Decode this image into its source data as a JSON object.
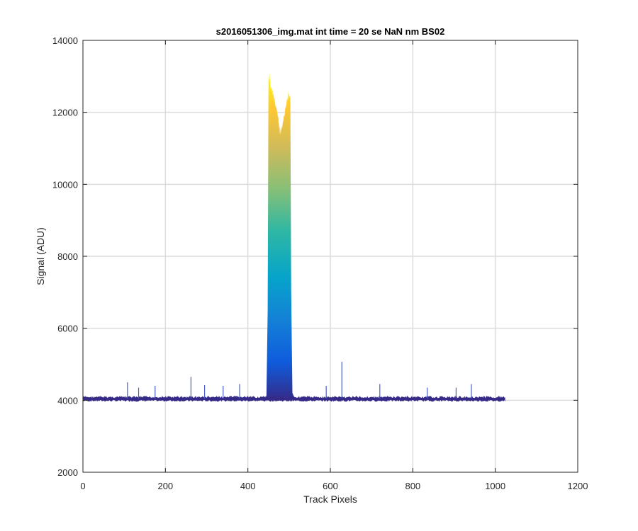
{
  "chart_data": {
    "type": "line",
    "title": "s2016051306_img.mat int time = 20 se  NaN nm BS02",
    "xlabel": "Track Pixels",
    "ylabel": "Signal (ADU)",
    "xlim": [
      0,
      1200
    ],
    "ylim": [
      2000,
      14000
    ],
    "xticks": [
      "0",
      "200",
      "400",
      "600",
      "800",
      "1000",
      "1200"
    ],
    "yticks": [
      "2000",
      "4000",
      "6000",
      "8000",
      "10000",
      "12000",
      "14000"
    ],
    "grid": true,
    "colormap": [
      "#352A87",
      "#0F5CDD",
      "#1481D6",
      "#06A4CA",
      "#2EB7A4",
      "#87BF77",
      "#D1BB59",
      "#FEC832",
      "#F9FB0E"
    ],
    "baseline": {
      "x_start": 0,
      "x_end": 1024,
      "low": 3960,
      "high": 4120
    },
    "peak": {
      "x": [
        445,
        448,
        450,
        452,
        455,
        460,
        465,
        470,
        475,
        478,
        480,
        483,
        486,
        490,
        495,
        500,
        503,
        505,
        508,
        512
      ],
      "y": [
        4100,
        6500,
        12900,
        13050,
        12700,
        12550,
        12350,
        12050,
        11700,
        11450,
        11500,
        11600,
        11800,
        12050,
        12350,
        12550,
        12450,
        7000,
        4200,
        4100
      ]
    },
    "spikes": [
      {
        "x": 108,
        "y": 4500
      },
      {
        "x": 135,
        "y": 4350
      },
      {
        "x": 175,
        "y": 4400
      },
      {
        "x": 262,
        "y": 4650
      },
      {
        "x": 295,
        "y": 4420
      },
      {
        "x": 340,
        "y": 4400
      },
      {
        "x": 380,
        "y": 4450
      },
      {
        "x": 590,
        "y": 4400
      },
      {
        "x": 628,
        "y": 5070
      },
      {
        "x": 720,
        "y": 4450
      },
      {
        "x": 835,
        "y": 4350
      },
      {
        "x": 905,
        "y": 4350
      },
      {
        "x": 942,
        "y": 4450
      }
    ]
  }
}
